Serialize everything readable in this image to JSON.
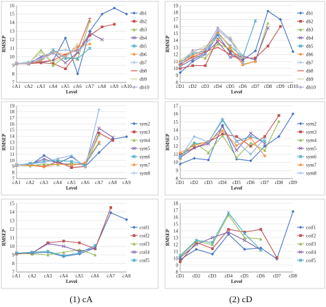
{
  "captions": [
    "(1) cA",
    "(2) cD"
  ],
  "colors": {
    "db1": "#4472C4",
    "db2": "#C0504D",
    "db3": "#9BBB59",
    "db4": "#7F5FA8",
    "db5": "#4BACC6",
    "db6": "#F79646",
    "db7": "#8DB4E2",
    "db8": "#D9534F",
    "db9": "#C3D69B",
    "db10": "#B3A2C7"
  },
  "chart_data": [
    {
      "type": "line",
      "id": "cA-db",
      "ylabel": "RMSEP",
      "xlabel": "Level",
      "ylim": [
        7,
        16
      ],
      "categories": [
        "cA1",
        "cA2",
        "cA3",
        "cA4",
        "cA5",
        "cA6",
        "cA7",
        "cA8",
        "cA9",
        "cA10"
      ],
      "series": [
        {
          "name": "db1",
          "color": "#4472C4",
          "marker": "diamond",
          "values": [
            9.2,
            9.2,
            9.3,
            9.6,
            12.2,
            8.0,
            13.0,
            15.0,
            15.7,
            15.0
          ]
        },
        {
          "name": "db2",
          "color": "#C0504D",
          "marker": "square",
          "values": [
            9.2,
            9.2,
            9.3,
            9.2,
            8.6,
            10.5,
            12.5,
            13.5,
            13.8,
            null
          ]
        },
        {
          "name": "db3",
          "color": "#9BBB59",
          "marker": "triangle",
          "values": [
            9.2,
            9.2,
            10.8,
            9.0,
            10.0,
            9.7,
            14.2,
            null,
            null,
            null
          ]
        },
        {
          "name": "db4",
          "color": "#7F5FA8",
          "marker": "x",
          "values": [
            9.2,
            9.2,
            10.0,
            10.5,
            9.3,
            10.5,
            12.8,
            12.0,
            null,
            null
          ]
        },
        {
          "name": "db5",
          "color": "#4BACC6",
          "marker": "star",
          "values": [
            9.2,
            9.3,
            9.5,
            10.8,
            9.8,
            9.8,
            11.0,
            null,
            null,
            null
          ]
        },
        {
          "name": "db6",
          "color": "#F79646",
          "marker": "circle",
          "values": [
            9.2,
            9.2,
            9.6,
            10.6,
            10.2,
            11.2,
            11.5,
            null,
            null,
            null
          ]
        },
        {
          "name": "db7",
          "color": "#8DB4E2",
          "marker": "plus",
          "values": [
            9.2,
            9.4,
            9.8,
            10.6,
            10.8,
            10.6,
            12.0,
            null,
            null,
            null
          ]
        },
        {
          "name": "db8",
          "color": "#D9534F",
          "marker": "dash",
          "values": [
            9.2,
            9.2,
            9.4,
            9.6,
            10.3,
            10.8,
            14.5,
            null,
            null,
            null
          ]
        },
        {
          "name": "db9",
          "color": "#C3D69B",
          "marker": "dash",
          "values": [
            9.2,
            9.3,
            10.5,
            9.4,
            10.0,
            11.5,
            null,
            null,
            null,
            null
          ]
        },
        {
          "name": "db10",
          "color": "#B3A2C7",
          "marker": "diamond",
          "values": [
            9.2,
            9.2,
            9.7,
            10.4,
            10.0,
            11.0,
            null,
            null,
            null,
            null
          ]
        }
      ]
    },
    {
      "type": "line",
      "id": "cD-db",
      "ylabel": "RMSEP",
      "xlabel": "Level",
      "ylim": [
        8,
        19
      ],
      "categories": [
        "cD1",
        "cD2",
        "cD3",
        "cD4",
        "cD5",
        "cD6",
        "cD7",
        "cD8",
        "cD9",
        "cD10"
      ],
      "series": [
        {
          "name": "db1",
          "color": "#4472C4",
          "marker": "diamond",
          "values": [
            9.4,
            11.0,
            12.0,
            14.8,
            12.2,
            11.2,
            12.5,
            18.2,
            17.0,
            12.4
          ]
        },
        {
          "name": "db2",
          "color": "#C0504D",
          "marker": "square",
          "values": [
            10.0,
            10.4,
            10.4,
            14.2,
            12.5,
            11.5,
            11.5,
            13.2,
            16.0,
            null
          ]
        },
        {
          "name": "db3",
          "color": "#9BBB59",
          "marker": "triangle",
          "values": [
            10.5,
            11.8,
            11.5,
            13.5,
            12.8,
            10.6,
            11.0,
            16.5,
            null,
            null
          ]
        },
        {
          "name": "db4",
          "color": "#7F5FA8",
          "marker": "x",
          "values": [
            10.3,
            11.3,
            12.2,
            13.8,
            11.6,
            11.8,
            11.2,
            15.8,
            null,
            null
          ]
        },
        {
          "name": "db5",
          "color": "#4BACC6",
          "marker": "star",
          "values": [
            10.8,
            12.1,
            12.5,
            15.0,
            13.2,
            11.6,
            16.8,
            null,
            null,
            null
          ]
        },
        {
          "name": "db6",
          "color": "#F79646",
          "marker": "circle",
          "values": [
            11.0,
            11.8,
            12.8,
            15.2,
            13.0,
            10.5,
            11.0,
            null,
            null,
            null
          ]
        },
        {
          "name": "db7",
          "color": "#8DB4E2",
          "marker": "plus",
          "values": [
            10.8,
            12.4,
            12.0,
            15.5,
            14.0,
            11.8,
            null,
            null,
            null,
            null
          ]
        },
        {
          "name": "db8",
          "color": "#D9534F",
          "marker": "dash",
          "values": [
            10.6,
            11.6,
            12.4,
            13.0,
            12.0,
            11.0,
            null,
            null,
            null,
            null
          ]
        },
        {
          "name": "db9",
          "color": "#C3D69B",
          "marker": "dash",
          "values": [
            11.2,
            12.3,
            13.2,
            14.2,
            14.5,
            11.5,
            null,
            null,
            null,
            null
          ]
        },
        {
          "name": "db10",
          "color": "#B3A2C7",
          "marker": "diamond",
          "values": [
            10.2,
            12.6,
            12.8,
            15.8,
            14.2,
            10.8,
            null,
            null,
            null,
            null
          ]
        }
      ]
    },
    {
      "type": "line",
      "id": "cA-sym",
      "ylabel": "RMSEP",
      "xlabel": "Level",
      "ylim": [
        7,
        19
      ],
      "categories": [
        "cA1",
        "cA2",
        "cA3",
        "cA4",
        "cA5",
        "cA6",
        "cA7",
        "cA8",
        "cA9"
      ],
      "series": [
        {
          "name": "sym2",
          "color": "#4472C4",
          "marker": "diamond",
          "values": [
            9.2,
            9.2,
            10.8,
            9.5,
            10.6,
            9.0,
            11.3,
            13.5,
            13.9
          ]
        },
        {
          "name": "sym3",
          "color": "#C0504D",
          "marker": "square",
          "values": [
            9.2,
            9.3,
            9.0,
            9.8,
            8.8,
            9.0,
            14.5,
            13.3,
            null
          ]
        },
        {
          "name": "sym4",
          "color": "#9BBB59",
          "marker": "triangle",
          "values": [
            9.2,
            9.1,
            9.4,
            9.3,
            9.5,
            9.2,
            14.2,
            null,
            null
          ]
        },
        {
          "name": "sym5",
          "color": "#7F5FA8",
          "marker": "x",
          "values": [
            9.2,
            9.4,
            10.2,
            9.6,
            9.2,
            9.5,
            15.3,
            13.8,
            null
          ]
        },
        {
          "name": "sym6",
          "color": "#4BACC6",
          "marker": "star",
          "values": [
            9.2,
            9.5,
            9.8,
            10.0,
            9.8,
            9.4,
            12.8,
            null,
            null
          ]
        },
        {
          "name": "sym7",
          "color": "#F79646",
          "marker": "circle",
          "values": [
            9.2,
            9.2,
            8.9,
            9.4,
            9.2,
            9.6,
            13.0,
            null,
            null
          ]
        },
        {
          "name": "sym8",
          "color": "#8DB4E2",
          "marker": "plus",
          "values": [
            9.2,
            9.4,
            9.7,
            10.3,
            10.8,
            8.8,
            18.4,
            null,
            null
          ]
        }
      ]
    },
    {
      "type": "line",
      "id": "cD-sym",
      "ylabel": "RMSEP",
      "xlabel": "Level",
      "ylim": [
        8,
        17
      ],
      "categories": [
        "cD1",
        "cD2",
        "cD3",
        "cD4",
        "cD5",
        "cD6",
        "cD7",
        "cD8",
        "cD9"
      ],
      "series": [
        {
          "name": "sym2",
          "color": "#4472C4",
          "marker": "diamond",
          "values": [
            9.8,
            10.5,
            10.3,
            14.6,
            10.4,
            10.2,
            12.0,
            13.2,
            16.0
          ]
        },
        {
          "name": "sym3",
          "color": "#C0504D",
          "marker": "square",
          "values": [
            11.0,
            11.8,
            12.5,
            13.5,
            13.2,
            12.0,
            13.2,
            15.8,
            null
          ]
        },
        {
          "name": "sym4",
          "color": "#9BBB59",
          "marker": "triangle",
          "values": [
            10.5,
            12.5,
            11.2,
            13.3,
            10.6,
            12.4,
            11.5,
            15.1,
            null
          ]
        },
        {
          "name": "sym5",
          "color": "#7F5FA8",
          "marker": "x",
          "values": [
            10.6,
            11.8,
            12.3,
            14.4,
            11.5,
            13.6,
            12.3,
            null,
            null
          ]
        },
        {
          "name": "sym6",
          "color": "#4BACC6",
          "marker": "star",
          "values": [
            10.8,
            12.3,
            12.5,
            15.2,
            12.6,
            13.2,
            12.6,
            null,
            null
          ]
        },
        {
          "name": "sym7",
          "color": "#F79646",
          "marker": "circle",
          "values": [
            11.2,
            12.1,
            12.6,
            13.9,
            12.1,
            13.0,
            10.8,
            null,
            null
          ]
        },
        {
          "name": "sym8",
          "color": "#8DB4E2",
          "marker": "plus",
          "values": [
            10.6,
            13.2,
            12.5,
            15.4,
            12.6,
            11.0,
            13.0,
            null,
            null
          ]
        }
      ]
    },
    {
      "type": "line",
      "id": "cA-coif",
      "ylabel": "RMSEP",
      "xlabel": "Level",
      "ylim": [
        7,
        15
      ],
      "categories": [
        "cA1",
        "cA2",
        "cA3",
        "cA4",
        "cA5",
        "cA6",
        "cA7",
        "cA8"
      ],
      "series": [
        {
          "name": "coif1",
          "color": "#4472C4",
          "marker": "diamond",
          "values": [
            9.2,
            9.2,
            9.3,
            8.8,
            9.1,
            9.8,
            13.9,
            13.1
          ]
        },
        {
          "name": "coif2",
          "color": "#C0504D",
          "marker": "square",
          "values": [
            9.1,
            9.2,
            10.4,
            10.6,
            10.4,
            9.7,
            14.5,
            null
          ]
        },
        {
          "name": "coif3",
          "color": "#9BBB59",
          "marker": "triangle",
          "values": [
            9.2,
            9.1,
            9.0,
            9.3,
            9.6,
            9.0,
            null,
            null
          ]
        },
        {
          "name": "coif4",
          "color": "#7F5FA8",
          "marker": "x",
          "values": [
            9.2,
            9.2,
            10.3,
            10.0,
            9.4,
            9.8,
            null,
            null
          ]
        },
        {
          "name": "coif5",
          "color": "#4BACC6",
          "marker": "star",
          "values": [
            9.2,
            9.3,
            9.4,
            8.9,
            9.2,
            10.1,
            null,
            null
          ]
        }
      ]
    },
    {
      "type": "line",
      "id": "cD-coif",
      "ylabel": "RMSEP",
      "xlabel": "Level",
      "ylim": [
        8,
        18
      ],
      "categories": [
        "cD1",
        "cD2",
        "cD3",
        "cD4",
        "cD5",
        "cD6",
        "cD7",
        "cD8"
      ],
      "series": [
        {
          "name": "coif1",
          "color": "#4472C4",
          "marker": "diamond",
          "values": [
            9.8,
            11.3,
            10.6,
            13.5,
            11.3,
            11.5,
            9.9,
            16.8
          ]
        },
        {
          "name": "coif2",
          "color": "#C0504D",
          "marker": "square",
          "values": [
            9.5,
            12.3,
            11.4,
            14.2,
            13.8,
            14.2,
            10.1,
            null
          ]
        },
        {
          "name": "coif3",
          "color": "#9BBB59",
          "marker": "triangle",
          "values": [
            10.2,
            12.5,
            12.0,
            16.3,
            13.0,
            12.8,
            null,
            null
          ]
        },
        {
          "name": "coif4",
          "color": "#7F5FA8",
          "marker": "x",
          "values": [
            10.1,
            12.0,
            13.0,
            13.8,
            12.6,
            11.2,
            null,
            null
          ]
        },
        {
          "name": "coif5",
          "color": "#4BACC6",
          "marker": "star",
          "values": [
            10.4,
            12.6,
            12.3,
            16.6,
            13.6,
            11.2,
            null,
            null
          ]
        }
      ]
    }
  ]
}
